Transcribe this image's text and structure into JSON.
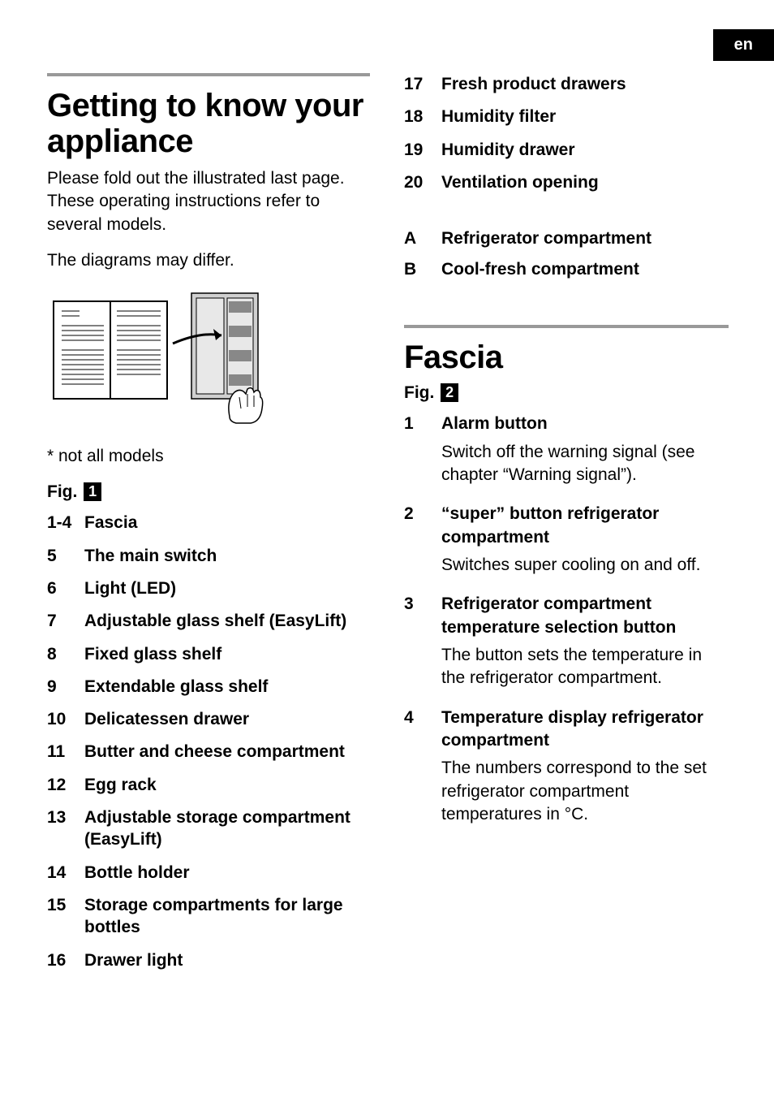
{
  "lang_tab": "en",
  "left": {
    "heading": "Getting to know your appliance",
    "intro1": "Please fold out the illustrated last page. These operating instructions refer to several models.",
    "intro2": "The diagrams may differ.",
    "note": "* not all models",
    "fig_label": "Fig.",
    "fig_num": "1",
    "parts": [
      {
        "num": "1-4",
        "label": "Fascia"
      },
      {
        "num": "5",
        "label": "The main switch"
      },
      {
        "num": "6",
        "label": "Light (LED)"
      },
      {
        "num": "7",
        "label": "Adjustable glass shelf (EasyLift)"
      },
      {
        "num": "8",
        "label": "Fixed glass shelf"
      },
      {
        "num": "9",
        "label": "Extendable glass shelf"
      },
      {
        "num": "10",
        "label": "Delicatessen drawer"
      },
      {
        "num": "11",
        "label": "Butter and cheese compartment"
      },
      {
        "num": "12",
        "label": "Egg rack"
      },
      {
        "num": "13",
        "label": "Adjustable storage compartment (EasyLift)"
      },
      {
        "num": "14",
        "label": "Bottle holder"
      },
      {
        "num": "15",
        "label": "Storage compartments for large bottles"
      },
      {
        "num": "16",
        "label": "Drawer light"
      }
    ]
  },
  "right": {
    "parts_cont": [
      {
        "num": "17",
        "label": "Fresh product drawers"
      },
      {
        "num": "18",
        "label": "Humidity filter"
      },
      {
        "num": "19",
        "label": "Humidity drawer"
      },
      {
        "num": "20",
        "label": "Ventilation opening"
      }
    ],
    "compartments": [
      {
        "key": "A",
        "label": "Refrigerator compartment"
      },
      {
        "key": "B",
        "label": "Cool-fresh compartment"
      }
    ],
    "fascia": {
      "heading": "Fascia",
      "fig_label": "Fig.",
      "fig_num": "2",
      "items": [
        {
          "num": "1",
          "title": "Alarm button",
          "desc": "Switch off the warning signal (see chapter “Warning signal”)."
        },
        {
          "num": "2",
          "title": "“super” button refrigerator compartment",
          "desc": "Switches super cooling on and off."
        },
        {
          "num": "3",
          "title": "Refrigerator compartment temperature selection button",
          "desc": "The button sets the temperature in the refrigerator compartment."
        },
        {
          "num": "4",
          "title": "Temperature display refrigerator compartment",
          "desc": "The numbers correspond to the set refrigerator compartment temperatures in °C."
        }
      ]
    }
  },
  "style": {
    "rule_color": "#999999",
    "text_color": "#000000",
    "bg_color": "#ffffff",
    "heading_fontsize": 40,
    "body_fontsize": 21
  }
}
